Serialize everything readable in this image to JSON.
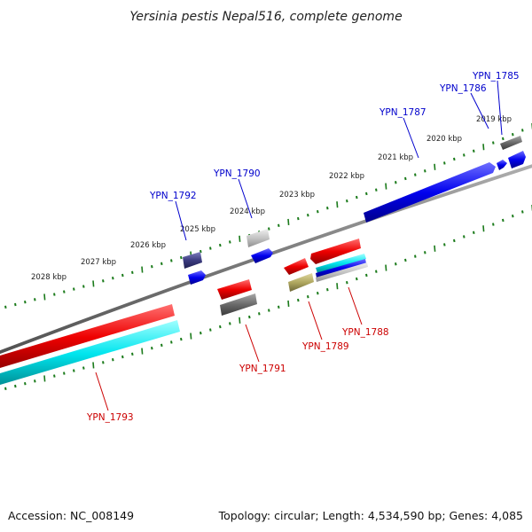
{
  "title": "Yersinia pestis Nepal516, complete genome",
  "footer": {
    "accession": "Accession: NC_008149",
    "summary": "Topology: circular; Length: 4,534,590 bp; Genes: 4,085"
  },
  "ruler_ticks": [
    "2019 kbp",
    "2020 kbp",
    "2021 kbp",
    "2022 kbp",
    "2023 kbp",
    "2024 kbp",
    "2025 kbp",
    "2026 kbp",
    "2027 kbp",
    "2028 kbp"
  ],
  "genes_forward": [
    "YPN_1785",
    "YPN_1786",
    "YPN_1787",
    "YPN_1790",
    "YPN_1792"
  ],
  "genes_reverse": [
    "YPN_1788",
    "YPN_1789",
    "YPN_1791",
    "YPN_1793"
  ],
  "colors": {
    "forward_label": "#0000cc",
    "reverse_label": "#cc0000",
    "backbone": "#808080",
    "ruler": "#1a7a1a",
    "cds_forward": "#0000ee",
    "cds_reverse": "#ee0000",
    "cyan": "#00e5ee",
    "gray": "#707070",
    "lightgray": "#c8c8c8",
    "slate": "#3c3c80",
    "khaki": "#b0a860"
  }
}
